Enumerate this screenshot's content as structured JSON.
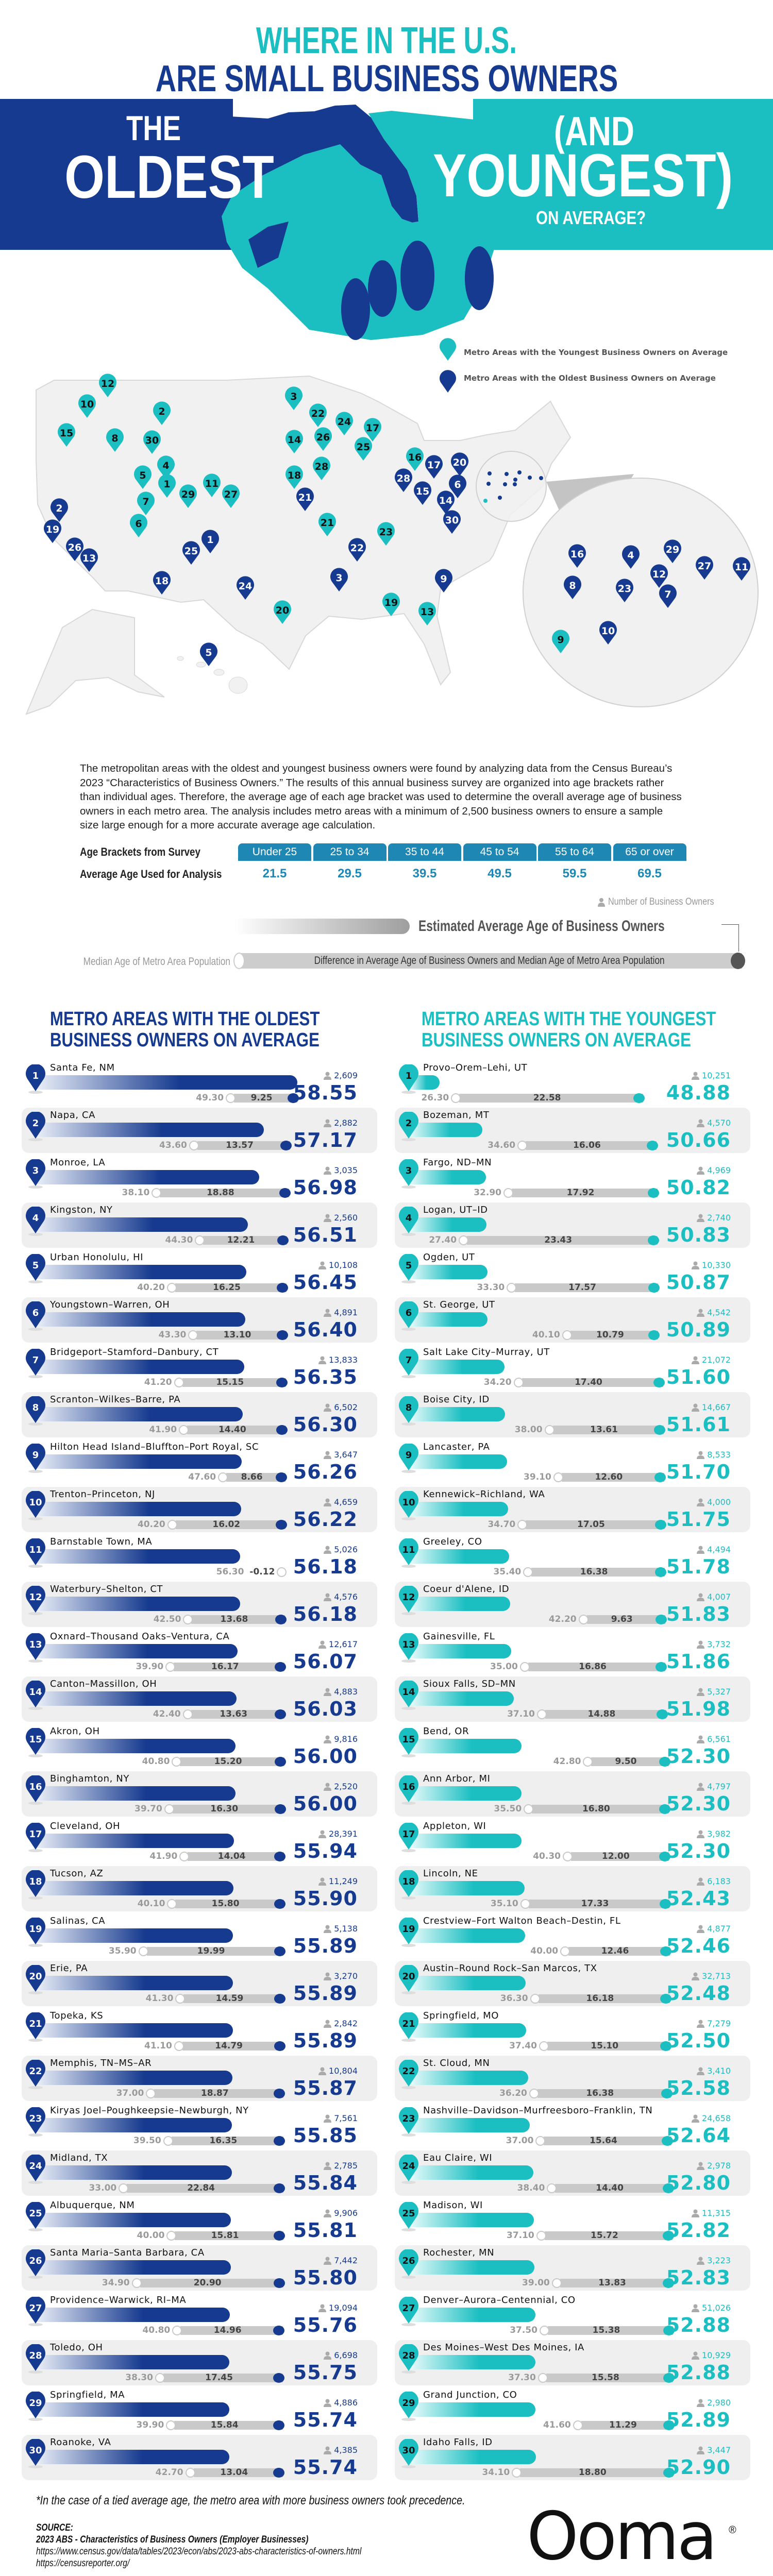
{
  "colors": {
    "navy": "#163a8f",
    "teal": "#1bbfc2",
    "bracket": "#1f87b3",
    "row_bg": "#efefef",
    "bar_gray": "#c9c9c9"
  },
  "header": {
    "line1": "WHERE IN THE U.S.",
    "line2": "ARE SMALL BUSINESS OWNERS",
    "the": "THE",
    "oldest": "OLDEST",
    "and": "(AND",
    "youngest": "YOUNGEST)",
    "on_average": "ON AVERAGE?"
  },
  "map": {
    "legend_young": "Metro Areas with the Youngest Business Owners on Average",
    "legend_old": "Metro Areas with the Oldest Business Owners on Average",
    "young_markers": [
      "12",
      "10",
      "2",
      "15",
      "8",
      "30",
      "4",
      "5",
      "1",
      "7",
      "29",
      "11",
      "27",
      "6",
      "3",
      "22",
      "24",
      "17",
      "26",
      "14",
      "25",
      "28",
      "18",
      "16",
      "21",
      "23",
      "20",
      "19",
      "13",
      "9"
    ],
    "old_markers": [
      "2",
      "19",
      "26",
      "13",
      "1",
      "25",
      "18",
      "24",
      "5",
      "21",
      "3",
      "22",
      "9",
      "17",
      "20",
      "28",
      "6",
      "15",
      "14",
      "30",
      "16",
      "4",
      "29",
      "12",
      "27",
      "11",
      "8",
      "23",
      "7",
      "10"
    ]
  },
  "methodology": {
    "paragraph": "The metropolitan areas with the oldest and youngest business owners were found by analyzing data from the Census Bureau’s 2023 “Characteristics of Business Owners.” The results of this annual business survey are organized into age brackets rather than individual ages. Therefore, the average age of each age bracket was used to determine the overall average age of business owners in each metro area. The analysis includes metro areas with a minimum of 2,500 business owners to ensure a sample size large enough for a more accurate average age calculation.",
    "brackets_label": "Age Brackets from Survey",
    "avg_label": "Average Age Used for Analysis",
    "brackets": [
      "Under 25",
      "25 to 34",
      "35 to 44",
      "45 to 54",
      "55 to 64",
      "65 or over"
    ],
    "avg_ages": [
      "21.5",
      "29.5",
      "39.5",
      "49.5",
      "59.5",
      "69.5"
    ]
  },
  "key": {
    "owners": "Number of Business Owners",
    "estimated": "Estimated Average Age of Business Owners",
    "median": "Median Age of Metro Area Population",
    "difference": "Difference in Average Age of Business Owners and Median Age of Metro Area Population"
  },
  "oldest": {
    "title1": "METRO AREAS WITH THE OLDEST",
    "title2": "BUSINESS OWNERS ON AVERAGE",
    "rows": [
      {
        "rank": "1",
        "name": "Santa Fe, NM",
        "owners": "2,609",
        "avg": "58.55",
        "median": "49.30",
        "diff": "9.25"
      },
      {
        "rank": "2",
        "name": "Napa, CA",
        "owners": "2,882",
        "avg": "57.17",
        "median": "43.60",
        "diff": "13.57"
      },
      {
        "rank": "3",
        "name": "Monroe, LA",
        "owners": "3,035",
        "avg": "56.98",
        "median": "38.10",
        "diff": "18.88"
      },
      {
        "rank": "4",
        "name": "Kingston, NY",
        "owners": "2,560",
        "avg": "56.51",
        "median": "44.30",
        "diff": "12.21"
      },
      {
        "rank": "5",
        "name": "Urban Honolulu, HI",
        "owners": "10,108",
        "avg": "56.45",
        "median": "40.20",
        "diff": "16.25"
      },
      {
        "rank": "6",
        "name": "Youngstown–Warren, OH",
        "owners": "4,891",
        "avg": "56.40",
        "median": "43.30",
        "diff": "13.10"
      },
      {
        "rank": "7",
        "name": "Bridgeport–Stamford–Danbury, CT",
        "owners": "13,833",
        "avg": "56.35",
        "median": "41.20",
        "diff": "15.15"
      },
      {
        "rank": "8",
        "name": "Scranton–Wilkes–Barre, PA",
        "owners": "6,502",
        "avg": "56.30",
        "median": "41.90",
        "diff": "14.40"
      },
      {
        "rank": "9",
        "name": "Hilton Head Island–Bluffton–Port Royal, SC",
        "owners": "3,647",
        "avg": "56.26",
        "median": "47.60",
        "diff": "8.66"
      },
      {
        "rank": "10",
        "name": "Trenton–Princeton, NJ",
        "owners": "4,659",
        "avg": "56.22",
        "median": "40.20",
        "diff": "16.02"
      },
      {
        "rank": "11",
        "name": "Barnstable Town, MA",
        "owners": "5,026",
        "avg": "56.18",
        "median": "56.30",
        "diff": "-0.12"
      },
      {
        "rank": "12",
        "name": "Waterbury–Shelton, CT",
        "owners": "4,576",
        "avg": "56.18",
        "median": "42.50",
        "diff": "13.68"
      },
      {
        "rank": "13",
        "name": "Oxnard–Thousand Oaks–Ventura, CA",
        "owners": "12,617",
        "avg": "56.07",
        "median": "39.90",
        "diff": "16.17"
      },
      {
        "rank": "14",
        "name": "Canton–Massillon, OH",
        "owners": "4,883",
        "avg": "56.03",
        "median": "42.40",
        "diff": "13.63"
      },
      {
        "rank": "15",
        "name": "Akron, OH",
        "owners": "9,816",
        "avg": "56.00",
        "median": "40.80",
        "diff": "15.20"
      },
      {
        "rank": "16",
        "name": "Binghamton, NY",
        "owners": "2,520",
        "avg": "56.00",
        "median": "39.70",
        "diff": "16.30"
      },
      {
        "rank": "17",
        "name": "Cleveland, OH",
        "owners": "28,391",
        "avg": "55.94",
        "median": "41.90",
        "diff": "14.04"
      },
      {
        "rank": "18",
        "name": "Tucson, AZ",
        "owners": "11,249",
        "avg": "55.90",
        "median": "40.10",
        "diff": "15.80"
      },
      {
        "rank": "19",
        "name": "Salinas, CA",
        "owners": "5,138",
        "avg": "55.89",
        "median": "35.90",
        "diff": "19.99"
      },
      {
        "rank": "20",
        "name": "Erie, PA",
        "owners": "3,270",
        "avg": "55.89",
        "median": "41.30",
        "diff": "14.59"
      },
      {
        "rank": "21",
        "name": "Topeka, KS",
        "owners": "2,842",
        "avg": "55.89",
        "median": "41.10",
        "diff": "14.79"
      },
      {
        "rank": "22",
        "name": "Memphis, TN–MS–AR",
        "owners": "10,804",
        "avg": "55.87",
        "median": "37.00",
        "diff": "18.87"
      },
      {
        "rank": "23",
        "name": "Kiryas Joel–Poughkeepsie–Newburgh, NY",
        "owners": "7,561",
        "avg": "55.85",
        "median": "39.50",
        "diff": "16.35"
      },
      {
        "rank": "24",
        "name": "Midland, TX",
        "owners": "2,785",
        "avg": "55.84",
        "median": "33.00",
        "diff": "22.84"
      },
      {
        "rank": "25",
        "name": "Albuquerque, NM",
        "owners": "9,906",
        "avg": "55.81",
        "median": "40.00",
        "diff": "15.81"
      },
      {
        "rank": "26",
        "name": "Santa Maria–Santa Barbara, CA",
        "owners": "7,442",
        "avg": "55.80",
        "median": "34.90",
        "diff": "20.90"
      },
      {
        "rank": "27",
        "name": "Providence–Warwick, RI–MA",
        "owners": "19,094",
        "avg": "55.76",
        "median": "40.80",
        "diff": "14.96"
      },
      {
        "rank": "28",
        "name": "Toledo, OH",
        "owners": "6,698",
        "avg": "55.75",
        "median": "38.30",
        "diff": "17.45"
      },
      {
        "rank": "29",
        "name": "Springfield, MA",
        "owners": "4,886",
        "avg": "55.74",
        "median": "39.90",
        "diff": "15.84"
      },
      {
        "rank": "30",
        "name": "Roanoke, VA",
        "owners": "4,385",
        "avg": "55.74",
        "median": "42.70",
        "diff": "13.04"
      }
    ]
  },
  "youngest": {
    "title1": "METRO AREAS WITH THE YOUNGEST",
    "title2": "BUSINESS OWNERS ON AVERAGE",
    "rows": [
      {
        "rank": "1",
        "name": "Provo–Orem–Lehi, UT",
        "owners": "10,251",
        "avg": "48.88",
        "median": "26.30",
        "diff": "22.58"
      },
      {
        "rank": "2",
        "name": "Bozeman, MT",
        "owners": "4,570",
        "avg": "50.66",
        "median": "34.60",
        "diff": "16.06"
      },
      {
        "rank": "3",
        "name": "Fargo, ND–MN",
        "owners": "4,969",
        "avg": "50.82",
        "median": "32.90",
        "diff": "17.92"
      },
      {
        "rank": "4",
        "name": "Logan, UT–ID",
        "owners": "2,740",
        "avg": "50.83",
        "median": "27.40",
        "diff": "23.43"
      },
      {
        "rank": "5",
        "name": "Ogden, UT",
        "owners": "10,330",
        "avg": "50.87",
        "median": "33.30",
        "diff": "17.57"
      },
      {
        "rank": "6",
        "name": "St. George, UT",
        "owners": "4,542",
        "avg": "50.89",
        "median": "40.10",
        "diff": "10.79"
      },
      {
        "rank": "7",
        "name": "Salt Lake City–Murray, UT",
        "owners": "21,072",
        "avg": "51.60",
        "median": "34.20",
        "diff": "17.40"
      },
      {
        "rank": "8",
        "name": "Boise City, ID",
        "owners": "14,667",
        "avg": "51.61",
        "median": "38.00",
        "diff": "13.61"
      },
      {
        "rank": "9",
        "name": "Lancaster, PA",
        "owners": "8,533",
        "avg": "51.70",
        "median": "39.10",
        "diff": "12.60"
      },
      {
        "rank": "10",
        "name": "Kennewick–Richland, WA",
        "owners": "4,000",
        "avg": "51.75",
        "median": "34.70",
        "diff": "17.05"
      },
      {
        "rank": "11",
        "name": "Greeley, CO",
        "owners": "4,494",
        "avg": "51.78",
        "median": "35.40",
        "diff": "16.38"
      },
      {
        "rank": "12",
        "name": "Coeur d'Alene, ID",
        "owners": "4,007",
        "avg": "51.83",
        "median": "42.20",
        "diff": "9.63"
      },
      {
        "rank": "13",
        "name": "Gainesville, FL",
        "owners": "3,732",
        "avg": "51.86",
        "median": "35.00",
        "diff": "16.86"
      },
      {
        "rank": "14",
        "name": "Sioux Falls, SD–MN",
        "owners": "5,327",
        "avg": "51.98",
        "median": "37.10",
        "diff": "14.88"
      },
      {
        "rank": "15",
        "name": "Bend, OR",
        "owners": "6,561",
        "avg": "52.30",
        "median": "42.80",
        "diff": "9.50"
      },
      {
        "rank": "16",
        "name": "Ann Arbor, MI",
        "owners": "4,797",
        "avg": "52.30",
        "median": "35.50",
        "diff": "16.80"
      },
      {
        "rank": "17",
        "name": "Appleton, WI",
        "owners": "3,982",
        "avg": "52.30",
        "median": "40.30",
        "diff": "12.00"
      },
      {
        "rank": "18",
        "name": "Lincoln, NE",
        "owners": "6,183",
        "avg": "52.43",
        "median": "35.10",
        "diff": "17.33"
      },
      {
        "rank": "19",
        "name": "Crestview–Fort Walton Beach–Destin, FL",
        "owners": "4,877",
        "avg": "52.46",
        "median": "40.00",
        "diff": "12.46"
      },
      {
        "rank": "20",
        "name": "Austin–Round Rock–San Marcos, TX",
        "owners": "32,713",
        "avg": "52.48",
        "median": "36.30",
        "diff": "16.18"
      },
      {
        "rank": "21",
        "name": "Springfield, MO",
        "owners": "7,279",
        "avg": "52.50",
        "median": "37.40",
        "diff": "15.10"
      },
      {
        "rank": "22",
        "name": "St. Cloud, MN",
        "owners": "3,410",
        "avg": "52.58",
        "median": "36.20",
        "diff": "16.38"
      },
      {
        "rank": "23",
        "name": "Nashville–Davidson–Murfreesboro–Franklin, TN",
        "owners": "24,658",
        "avg": "52.64",
        "median": "37.00",
        "diff": "15.64"
      },
      {
        "rank": "24",
        "name": "Eau Claire, WI",
        "owners": "2,978",
        "avg": "52.80",
        "median": "38.40",
        "diff": "14.40"
      },
      {
        "rank": "25",
        "name": "Madison, WI",
        "owners": "11,315",
        "avg": "52.82",
        "median": "37.10",
        "diff": "15.72"
      },
      {
        "rank": "26",
        "name": "Rochester, MN",
        "owners": "3,223",
        "avg": "52.83",
        "median": "39.00",
        "diff": "13.83"
      },
      {
        "rank": "27",
        "name": "Denver–Aurora–Centennial, CO",
        "owners": "51,026",
        "avg": "52.88",
        "median": "37.50",
        "diff": "15.38"
      },
      {
        "rank": "28",
        "name": "Des Moines–West Des Moines, IA",
        "owners": "10,929",
        "avg": "52.88",
        "median": "37.30",
        "diff": "15.58"
      },
      {
        "rank": "29",
        "name": "Grand Junction, CO",
        "owners": "2,980",
        "avg": "52.89",
        "median": "41.60",
        "diff": "11.29"
      },
      {
        "rank": "30",
        "name": "Idaho Falls, ID",
        "owners": "3,447",
        "avg": "52.90",
        "median": "34.10",
        "diff": "18.80"
      }
    ]
  },
  "footer": {
    "note": "*In the case of a tied average age, the metro area with more business owners took precedence.",
    "source_label": "SOURCE:",
    "source_title": "2023 ABS - Characteristics of Business Owners (Employer Businesses)",
    "source_url1": "https://www.census.gov/data/tables/2023/econ/abs/2023-abs-characteristics-of-owners.html",
    "source_url2": "https://censusreporter.org/",
    "logo": "Ooma"
  }
}
